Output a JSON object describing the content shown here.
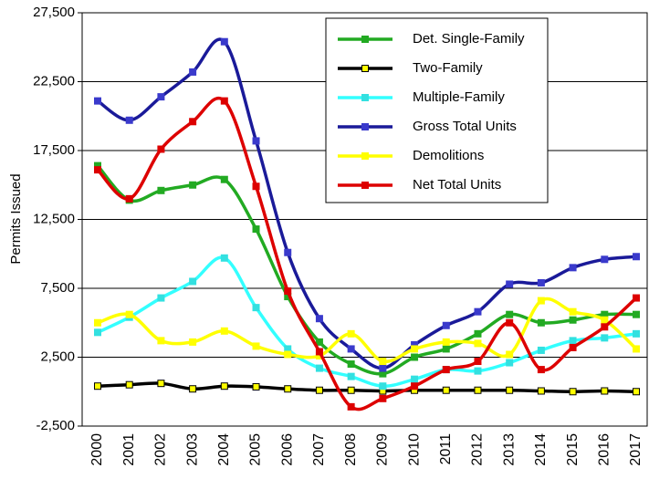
{
  "chart_data": {
    "type": "line",
    "y_label": "Permits Issued",
    "categories": [
      "2000",
      "2001",
      "2002",
      "2003",
      "2004",
      "2005",
      "2006",
      "2007",
      "2008",
      "2009",
      "2010",
      "2011",
      "2012",
      "2013",
      "2014",
      "2015",
      "2016",
      "2017"
    ],
    "series": [
      {
        "name": "Det. Single-Family",
        "color": "#22aa22",
        "marker_color": "#22aa22",
        "values": [
          16400,
          13900,
          14600,
          15000,
          15400,
          11800,
          6900,
          3600,
          2000,
          1300,
          2500,
          3100,
          4200,
          5600,
          5000,
          5200,
          5600,
          5600
        ]
      },
      {
        "name": "Two-Family",
        "color": "#000000",
        "marker_color": "#ffff00",
        "values": [
          400,
          500,
          600,
          200,
          400,
          350,
          200,
          100,
          100,
          50,
          100,
          100,
          100,
          100,
          50,
          0,
          50,
          0
        ]
      },
      {
        "name": "Multiple-Family",
        "color": "#33ffff",
        "marker_color": "#33e0e0",
        "values": [
          4300,
          5400,
          6800,
          8000,
          9700,
          6100,
          3100,
          1700,
          1100,
          400,
          900,
          1600,
          1500,
          2100,
          3000,
          3700,
          3900,
          4200
        ]
      },
      {
        "name": "Gross Total Units",
        "color": "#1a1a99",
        "marker_color": "#3a3acc",
        "values": [
          21100,
          19700,
          21400,
          23200,
          25400,
          18200,
          10100,
          5300,
          3100,
          1700,
          3400,
          4800,
          5800,
          7800,
          7900,
          9000,
          9600,
          9800
        ]
      },
      {
        "name": "Demolitions",
        "color": "#ffff00",
        "marker_color": "#ffff00",
        "values": [
          5000,
          5600,
          3700,
          3600,
          4400,
          3300,
          2700,
          2600,
          4200,
          2200,
          3100,
          3600,
          3500,
          2700,
          6600,
          5800,
          5200,
          3100
        ]
      },
      {
        "name": "Net Total Units",
        "color": "#dd0000",
        "marker_color": "#dd0000",
        "values": [
          16100,
          14000,
          17600,
          19600,
          21100,
          14900,
          7300,
          2900,
          -1100,
          -500,
          400,
          1600,
          2200,
          5000,
          1600,
          3200,
          4700,
          6800
        ]
      }
    ],
    "ylim": [
      -2500,
      27500
    ],
    "yticks": [
      {
        "value": -2500,
        "label": "-2,500"
      },
      {
        "value": 2500,
        "label": "2,500"
      },
      {
        "value": 7500,
        "label": "7,500"
      },
      {
        "value": 12500,
        "label": "12,500"
      },
      {
        "value": 17500,
        "label": "17,500"
      },
      {
        "value": 22500,
        "label": "22,500"
      },
      {
        "value": 27500,
        "label": "27,500"
      }
    ],
    "grid": true,
    "legend": "top-right"
  }
}
